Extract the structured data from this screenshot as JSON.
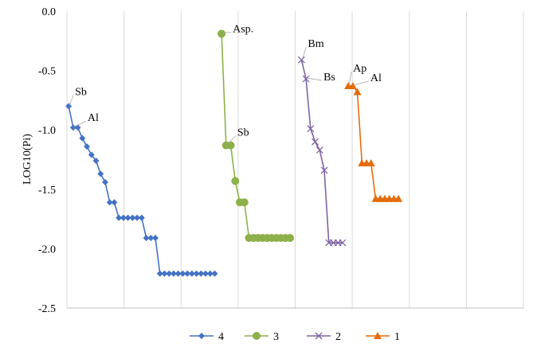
{
  "chart_data": {
    "type": "line",
    "ylabel": "LOG10(Pi)",
    "xlabel": "",
    "ylim": [
      -2.5,
      0
    ],
    "yticks": [
      "0.0",
      "-0.5",
      "-1.0",
      "-1.5",
      "-2.0",
      "-2.5"
    ],
    "grid": {
      "vertical": true,
      "horizontal": false
    },
    "legend": {
      "placement": "bottom"
    },
    "x_domain": [
      0,
      40
    ],
    "series": [
      {
        "name": "4",
        "color": "#4472C4",
        "marker": "diamond",
        "x": [
          0.3,
          1.1,
          1.9,
          2.7,
          3.5,
          4.3,
          5.1,
          5.9,
          6.7,
          7.5,
          8.3,
          9.1,
          9.9,
          10.7,
          11.5,
          12.3,
          13.1,
          13.9,
          14.7,
          15.5,
          16.3,
          17.1,
          17.9,
          18.7,
          19.5,
          20.3,
          21.1,
          21.9,
          22.7,
          23.5,
          24.3,
          25.1,
          25.9
        ],
        "values": [
          -0.8,
          -0.98,
          -0.98,
          -1.07,
          -1.14,
          -1.21,
          -1.26,
          -1.37,
          -1.44,
          -1.61,
          -1.61,
          -1.74,
          -1.74,
          -1.74,
          -1.74,
          -1.74,
          -1.74,
          -1.91,
          -1.91,
          -1.91,
          -2.21,
          -2.21,
          -2.21,
          -2.21,
          -2.21,
          -2.21,
          -2.21,
          -2.21,
          -2.21,
          -2.21,
          -2.21,
          -2.21,
          -2.21
        ]
      },
      {
        "name": "3",
        "color": "#8DB04A",
        "marker": "circle",
        "x": [
          27.1,
          27.9,
          28.7,
          29.5,
          30.3,
          31.1,
          31.9,
          32.7,
          33.5,
          34.3,
          35.1,
          35.9,
          36.7,
          37.5,
          38.3,
          39.1
        ],
        "values": [
          -0.19,
          -1.13,
          -1.13,
          -1.43,
          -1.61,
          -1.61,
          -1.91,
          -1.91,
          -1.91,
          -1.91,
          -1.91,
          -1.91,
          -1.91,
          -1.91,
          -1.91,
          -1.91
        ]
      },
      {
        "name": "2",
        "color": "#7E64A2",
        "marker": "x",
        "x": [
          41.1,
          41.9,
          42.7,
          43.5,
          44.3,
          45.1,
          45.9,
          46.7,
          47.5,
          48.3
        ],
        "values": [
          -0.41,
          -0.57,
          -0.99,
          -1.1,
          -1.17,
          -1.34,
          -1.95,
          -1.95,
          -1.95,
          -1.95
        ]
      },
      {
        "name": "1",
        "color": "#E46C0A",
        "marker": "triangle",
        "x": [
          49.3,
          50.1,
          50.9,
          51.7,
          52.5,
          53.3,
          54.1,
          54.9,
          55.7,
          56.5,
          57.3,
          58.1
        ],
        "values": [
          -0.63,
          -0.63,
          -0.68,
          -1.28,
          -1.28,
          -1.28,
          -1.58,
          -1.58,
          -1.58,
          -1.58,
          -1.58,
          -1.58
        ]
      }
    ],
    "annotations": [
      {
        "text": "Sb",
        "series": 0,
        "point": 0
      },
      {
        "text": "Al",
        "series": 0,
        "point": 1
      },
      {
        "text": "Asp.",
        "series": 1,
        "point": 0
      },
      {
        "text": "Sb",
        "series": 1,
        "point": 1
      },
      {
        "text": "Bm",
        "series": 2,
        "point": 0
      },
      {
        "text": "Bs",
        "series": 2,
        "point": 1
      },
      {
        "text": "Ap",
        "series": 3,
        "point": 0
      },
      {
        "text": "Al",
        "series": 3,
        "point": 1
      }
    ]
  }
}
